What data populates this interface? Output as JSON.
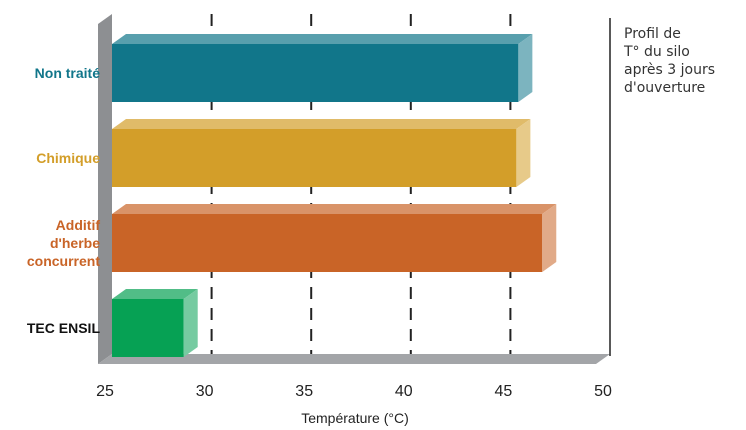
{
  "chart_data": {
    "type": "bar",
    "orientation": "horizontal",
    "categories": [
      "Non traité",
      "Chimique",
      "Additif d'herbe concurrent",
      "TEC ENSIL"
    ],
    "category_lines": [
      [
        "Non traité"
      ],
      [
        "Chimique"
      ],
      [
        "Additif",
        "d'herbe",
        "concurrent"
      ],
      [
        "TEC ENSIL"
      ]
    ],
    "values": [
      45.4,
      45.3,
      46.6,
      28.6
    ],
    "colors": [
      "#11768a",
      "#d39e29",
      "#c96427",
      "#06a154"
    ],
    "label_colors": [
      "#11768a",
      "#d39e29",
      "#c96427",
      "#111111"
    ],
    "xlabel": "Température (°C)",
    "xlim": [
      25,
      50
    ],
    "xticks": [
      25,
      30,
      35,
      40,
      45,
      50
    ],
    "gridlines": [
      30,
      35,
      40,
      45
    ],
    "annotation_lines": [
      "Profil de",
      "T° du silo",
      "après 3 jours",
      "d'ouverture"
    ]
  }
}
